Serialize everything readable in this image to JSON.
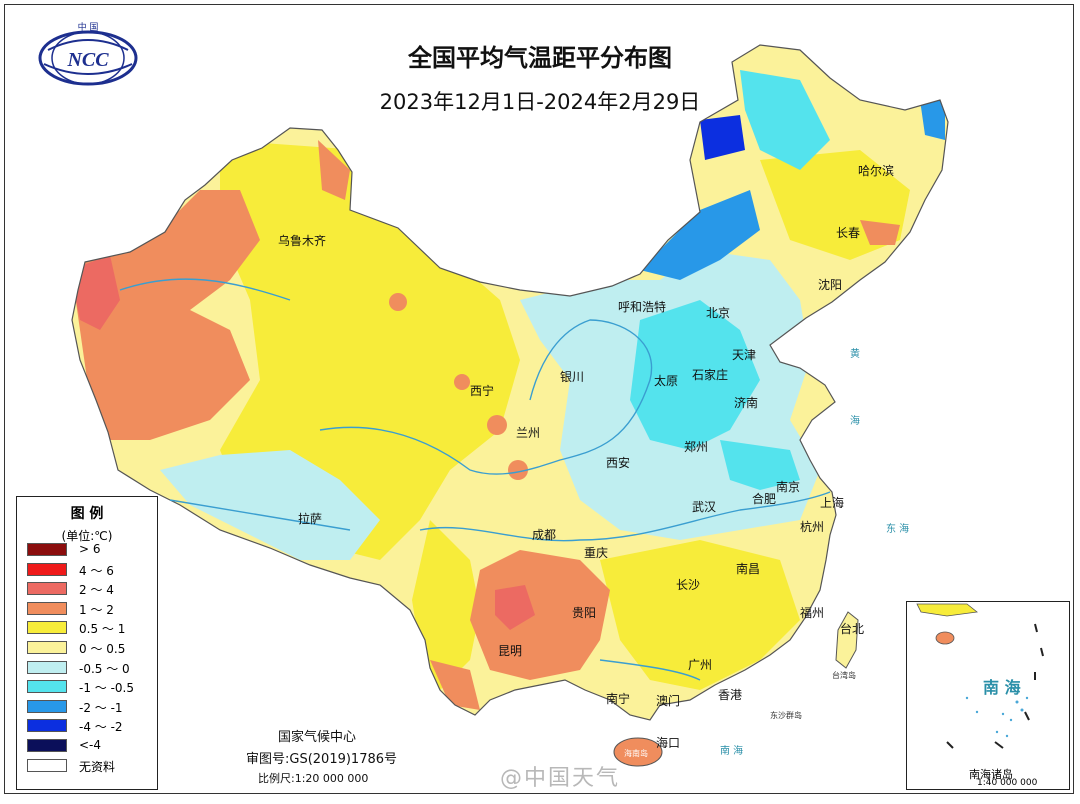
{
  "header": {
    "logo_text": "NCC",
    "logo_top": "中 国",
    "title": "全国平均气温距平分布图",
    "subtitle": "2023年12月1日-2024年2月29日"
  },
  "legend": {
    "title": "图 例",
    "unit": "(单位:℃)",
    "items": [
      {
        "label": "> 6",
        "color": "#8b0d0d"
      },
      {
        "label": "4 ～ 6",
        "color": "#ef1a1a"
      },
      {
        "label": "2 ～ 4",
        "color": "#ec6a62"
      },
      {
        "label": "1 ～ 2",
        "color": "#f08d5d"
      },
      {
        "label": "0.5 ～ 1",
        "color": "#f7ec3a"
      },
      {
        "label": "0 ～ 0.5",
        "color": "#fbf29a"
      },
      {
        "label": "-0.5 ～ 0",
        "color": "#bfeef0"
      },
      {
        "label": "-1 ～ -0.5",
        "color": "#54e3ed"
      },
      {
        "label": "-2 ～ -1",
        "color": "#2898e8"
      },
      {
        "label": "-4 ～ -2",
        "color": "#0c2fe0"
      },
      {
        "label": "<-4",
        "color": "#0b0f5a"
      },
      {
        "label": "无资料",
        "color": "#ffffff"
      }
    ]
  },
  "cities": [
    {
      "id": "urumqi",
      "name": "乌鲁木齐"
    },
    {
      "id": "lhasa",
      "name": "拉萨"
    },
    {
      "id": "xining",
      "name": "西宁"
    },
    {
      "id": "lanzhou",
      "name": "兰州"
    },
    {
      "id": "yinchuan",
      "name": "银川"
    },
    {
      "id": "hohhot",
      "name": "呼和浩特"
    },
    {
      "id": "beijing",
      "name": "北京"
    },
    {
      "id": "tianjin",
      "name": "天津"
    },
    {
      "id": "shijiazhuang",
      "name": "石家庄"
    },
    {
      "id": "taiyuan",
      "name": "太原"
    },
    {
      "id": "jinan",
      "name": "济南"
    },
    {
      "id": "zhengzhou",
      "name": "郑州"
    },
    {
      "id": "xian",
      "name": "西安"
    },
    {
      "id": "harbin",
      "name": "哈尔滨"
    },
    {
      "id": "changchun",
      "name": "长春"
    },
    {
      "id": "shenyang",
      "name": "沈阳"
    },
    {
      "id": "nanjing",
      "name": "南京"
    },
    {
      "id": "hefei",
      "name": "合肥"
    },
    {
      "id": "shanghai",
      "name": "上海"
    },
    {
      "id": "hangzhou",
      "name": "杭州"
    },
    {
      "id": "wuhan",
      "name": "武汉"
    },
    {
      "id": "chengdu",
      "name": "成都"
    },
    {
      "id": "chongqing",
      "name": "重庆"
    },
    {
      "id": "guiyang",
      "name": "贵阳"
    },
    {
      "id": "kunming",
      "name": "昆明"
    },
    {
      "id": "changsha",
      "name": "长沙"
    },
    {
      "id": "nanchang",
      "name": "南昌"
    },
    {
      "id": "fuzhou",
      "name": "福州"
    },
    {
      "id": "taipei",
      "name": "台北"
    },
    {
      "id": "guangzhou",
      "name": "广州"
    },
    {
      "id": "nanning",
      "name": "南宁"
    },
    {
      "id": "aomen",
      "name": "澳门"
    },
    {
      "id": "hongkong",
      "name": "香港"
    },
    {
      "id": "haikou",
      "name": "海口"
    }
  ],
  "seas": [
    {
      "id": "huanghai",
      "text": "黄"
    },
    {
      "id": "huanghai2",
      "text": "海"
    },
    {
      "id": "donghai",
      "text": "东 海"
    },
    {
      "id": "nanhai_main",
      "text": "南 海"
    },
    {
      "id": "taiwan",
      "text": "台湾岛"
    },
    {
      "id": "dongsha",
      "text": "东沙群岛"
    },
    {
      "id": "hainan",
      "text": "海南岛"
    }
  ],
  "credits": {
    "center": "国家气候中心",
    "approval": "审图号:GS(2019)1786号",
    "scale": "比例尺:1:20 000 000"
  },
  "inset": {
    "sea": "南 海",
    "islands": "南海诸岛",
    "scale": "1:40 000 000"
  },
  "watermark": "@中国天气"
}
